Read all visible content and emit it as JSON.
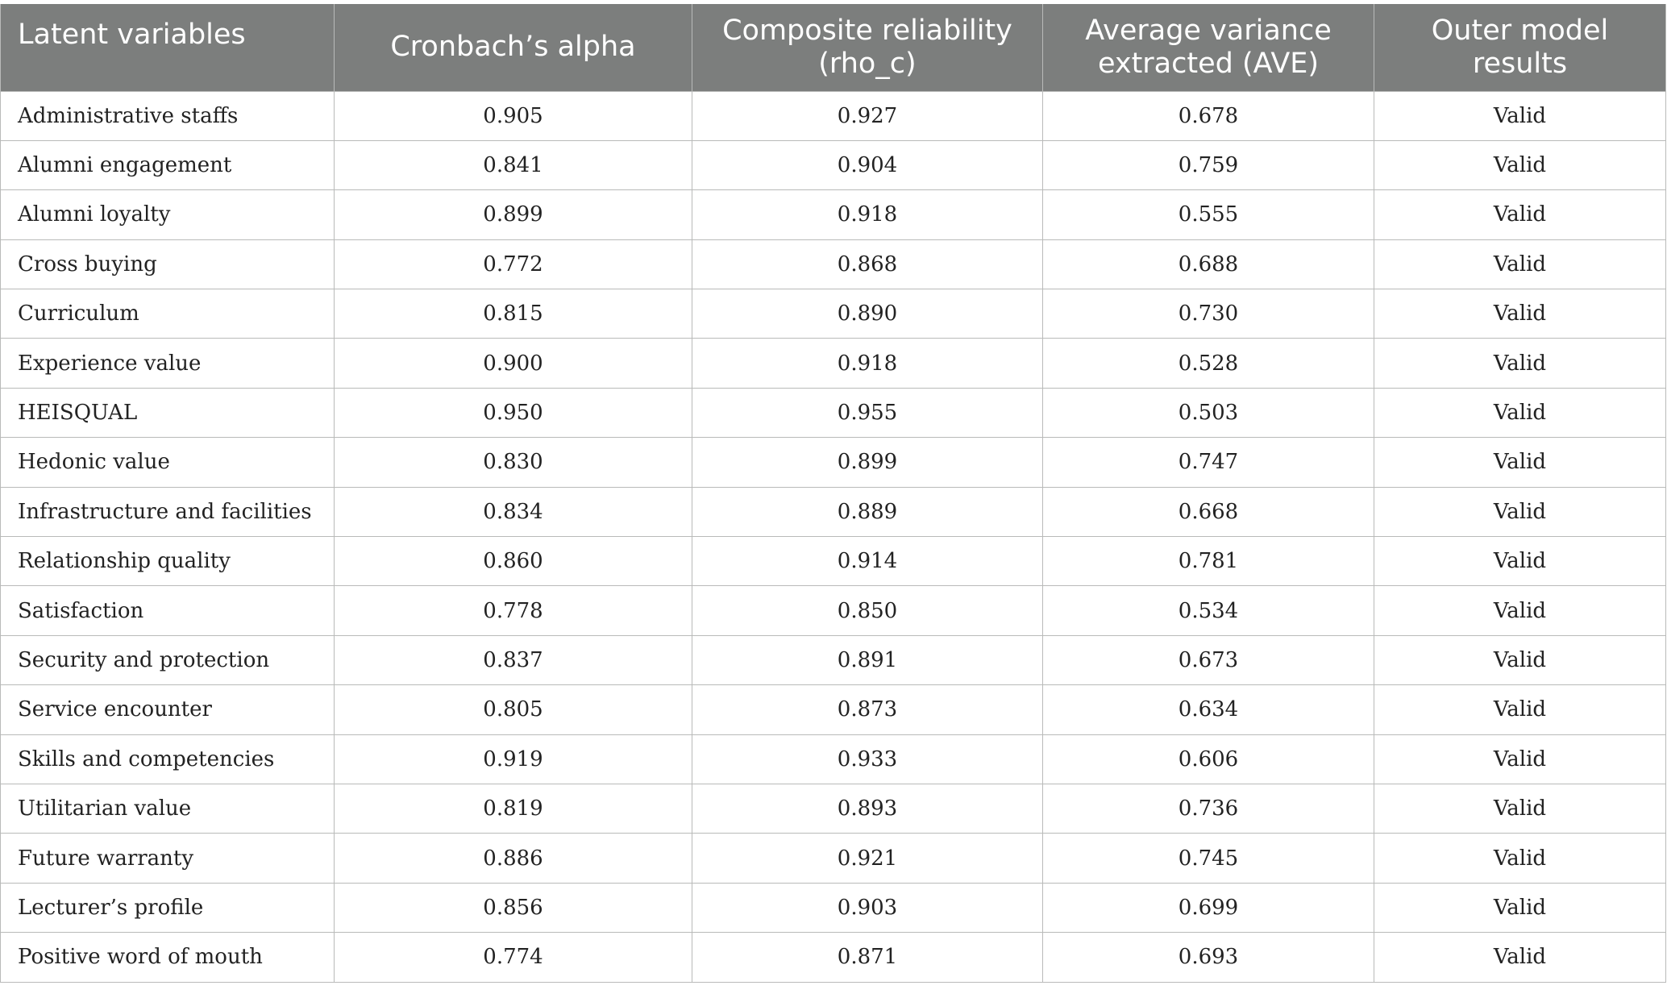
{
  "table": {
    "headers": [
      "Latent variables",
      "Cronbach’s alpha",
      "Composite reliability (rho_c)",
      "Average variance extracted (AVE)",
      "Outer model results"
    ],
    "rows": [
      [
        "Administrative staffs",
        "0.905",
        "0.927",
        "0.678",
        "Valid"
      ],
      [
        "Alumni engagement",
        "0.841",
        "0.904",
        "0.759",
        "Valid"
      ],
      [
        "Alumni loyalty",
        "0.899",
        "0.918",
        "0.555",
        "Valid"
      ],
      [
        "Cross buying",
        "0.772",
        "0.868",
        "0.688",
        "Valid"
      ],
      [
        "Curriculum",
        "0.815",
        "0.890",
        "0.730",
        "Valid"
      ],
      [
        "Experience value",
        "0.900",
        "0.918",
        "0.528",
        "Valid"
      ],
      [
        "HEISQUAL",
        "0.950",
        "0.955",
        "0.503",
        "Valid"
      ],
      [
        "Hedonic value",
        "0.830",
        "0.899",
        "0.747",
        "Valid"
      ],
      [
        "Infrastructure and facilities",
        "0.834",
        "0.889",
        "0.668",
        "Valid"
      ],
      [
        "Relationship quality",
        "0.860",
        "0.914",
        "0.781",
        "Valid"
      ],
      [
        "Satisfaction",
        "0.778",
        "0.850",
        "0.534",
        "Valid"
      ],
      [
        "Security and protection",
        "0.837",
        "0.891",
        "0.673",
        "Valid"
      ],
      [
        "Service encounter",
        "0.805",
        "0.873",
        "0.634",
        "Valid"
      ],
      [
        "Skills and competencies",
        "0.919",
        "0.933",
        "0.606",
        "Valid"
      ],
      [
        "Utilitarian value",
        "0.819",
        "0.893",
        "0.736",
        "Valid"
      ],
      [
        "Future warranty",
        "0.886",
        "0.921",
        "0.745",
        "Valid"
      ],
      [
        "Lecturer’s profile",
        "0.856",
        "0.903",
        "0.699",
        "Valid"
      ],
      [
        "Positive word of mouth",
        "0.774",
        "0.871",
        "0.693",
        "Valid"
      ]
    ]
  },
  "colors": {
    "header_background": "#7c7e7d",
    "header_text": "#ffffff",
    "grid_lines": "#b9bab9",
    "body_text": "#222222"
  }
}
